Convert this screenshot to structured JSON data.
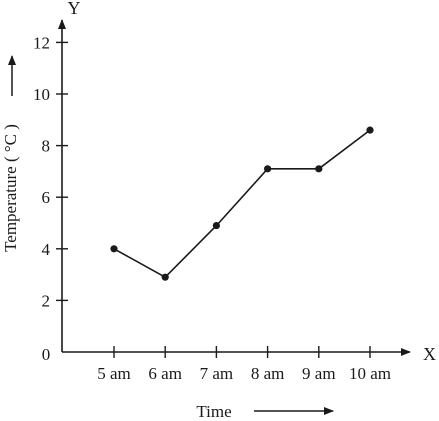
{
  "chart_data": {
    "type": "line",
    "x_axis_name": "X",
    "y_axis_name": "Y",
    "xlabel": "Time",
    "ylabel": "Temperature ( °C )",
    "origin_label": "0",
    "categories": [
      "5 am",
      "6 am",
      "7 am",
      "8 am",
      "9 am",
      "10 am"
    ],
    "values": [
      4,
      2.9,
      4.9,
      7.1,
      7.1,
      8.6
    ],
    "y_ticks": [
      2,
      4,
      6,
      8,
      10,
      12
    ],
    "ylim": [
      0,
      12.6
    ],
    "grid": false,
    "line_color": "#1a1a1a"
  }
}
